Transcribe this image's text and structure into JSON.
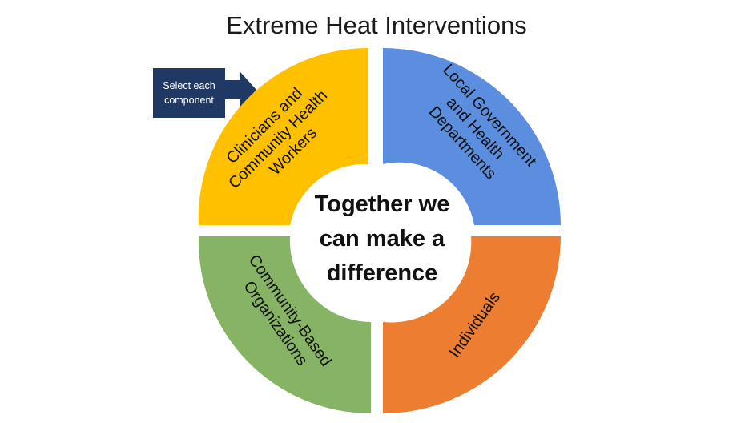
{
  "title": "Extreme Heat Interventions",
  "callout": {
    "text": "Select each component"
  },
  "center": {
    "line1": "Together we",
    "line2": "can make a",
    "line3": "difference"
  },
  "segments": {
    "top_left": {
      "lines": [
        "Clinicians and",
        "Community Health",
        "Workers"
      ],
      "color": "#FFC000"
    },
    "top_right": {
      "lines": [
        "Local Government",
        "and Health",
        "Departments"
      ],
      "color": "#5B8EDE"
    },
    "bottom_left": {
      "lines": [
        "Community-Based",
        "Organizations"
      ],
      "color": "#87B464"
    },
    "bottom_right": {
      "lines": [
        "Individuals"
      ],
      "color": "#ED7D31"
    }
  }
}
